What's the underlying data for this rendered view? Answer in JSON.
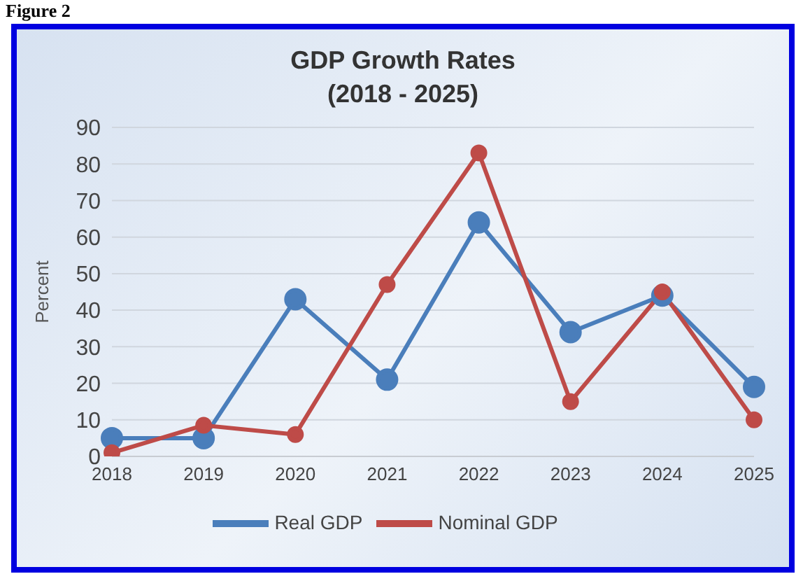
{
  "chart_data": {
    "type": "line",
    "title": "GDP Growth Rates\n(2018 - 2025)",
    "ylabel": "Percent",
    "annotations": [
      "Figure 2"
    ],
    "categories": [
      "2018",
      "2019",
      "2020",
      "2021",
      "2022",
      "2023",
      "2024",
      "2025"
    ],
    "series": [
      {
        "name": "Real GDP",
        "color": "#4a7ebb",
        "values": [
          5,
          5,
          43,
          21,
          64,
          34,
          44,
          19
        ]
      },
      {
        "name": "Nominal GDP",
        "color": "#be4b48",
        "values": [
          1,
          8.5,
          6,
          47,
          83,
          15,
          45,
          10
        ]
      }
    ],
    "ylim": [
      0,
      90
    ],
    "yticks": [
      0,
      10,
      20,
      30,
      40,
      50,
      60,
      70,
      80,
      90
    ],
    "grid": "y",
    "legend": "bottom",
    "marker": "circle",
    "line_style": "solid"
  }
}
